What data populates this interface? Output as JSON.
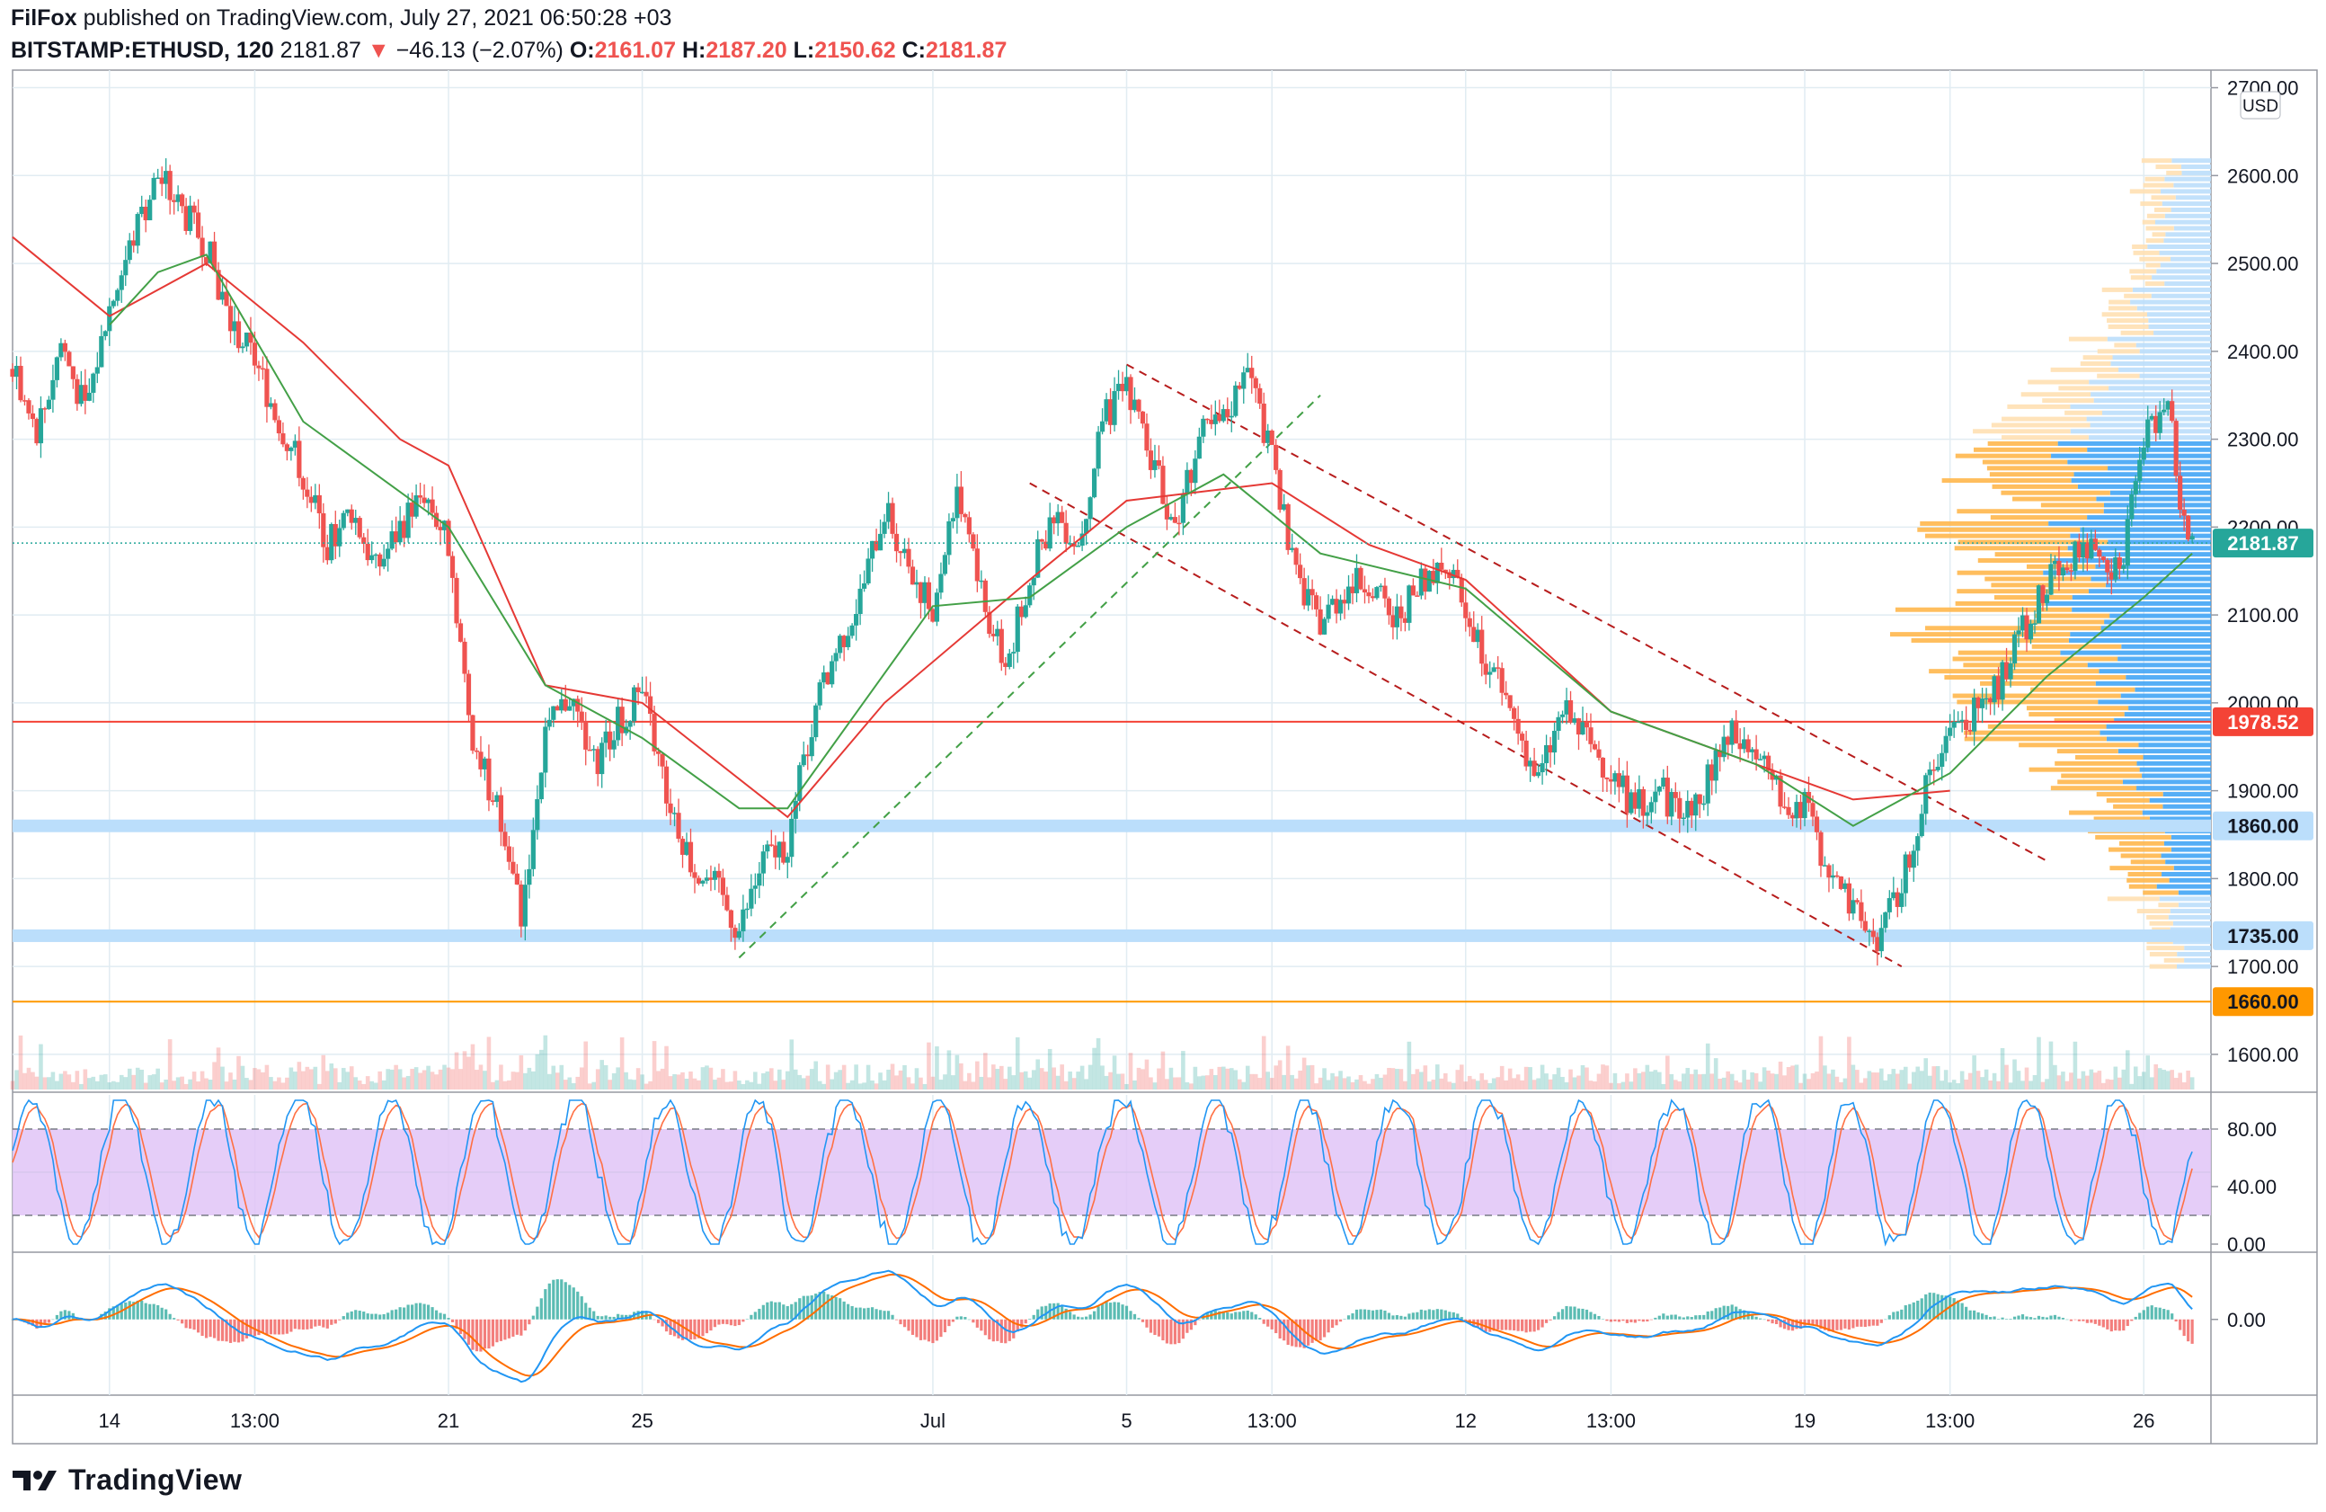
{
  "header": {
    "author": "FilFox",
    "published_text": "published on TradingView.com, July 27, 2021 06:50:28 +03",
    "symbol": "BITSTAMP:ETHUSD, 120",
    "last": "2181.87",
    "change_arrow": "▼",
    "change": "−46.13 (−2.07%)",
    "o_label": "O:",
    "o_value": "2161.07",
    "h_label": "H:",
    "h_value": "2187.20",
    "l_label": "L:",
    "l_value": "2150.62",
    "c_label": "C:",
    "c_value": "2181.87"
  },
  "branding": {
    "name": "TradingView"
  },
  "colors": {
    "up": "#26a69a",
    "down": "#ef5350",
    "grid": "#e1ecf2",
    "ema_red": "#e53935",
    "ema_green": "#43a047",
    "support_blue": "#bbdefb",
    "resistance_red": "#f44336",
    "support_orange": "#ff9800",
    "stoch_k": "#2196f3",
    "stoch_d": "#ff7043",
    "stoch_band": "#e1c4f7",
    "macd": "#2196f3",
    "signal": "#ff6d00"
  },
  "chart_data": [
    {
      "type": "candlestick",
      "title": "BITSTAMP:ETHUSD, 120",
      "currency": "USD",
      "ylim": [
        1560,
        2720
      ],
      "y_ticks": [
        "2700.00",
        "2600.00",
        "2500.00",
        "2400.00",
        "2300.00",
        "2200.00",
        "2100.00",
        "2000.00",
        "1900.00",
        "1800.00",
        "1700.00",
        "1600.00"
      ],
      "x_ticks": [
        "14",
        "13:00",
        "21",
        "25",
        "Jul",
        "5",
        "13:00",
        "12",
        "13:00",
        "19",
        "13:00",
        "26"
      ],
      "x_ticks_dates": [
        "2021-06-14",
        "2021-06-17",
        "2021-06-21",
        "2021-06-25",
        "2021-07-01",
        "2021-07-05",
        "2021-07-08",
        "2021-07-12",
        "2021-07-15",
        "2021-07-19",
        "2021-07-22",
        "2021-07-26"
      ],
      "x_range": [
        "2021-06-12",
        "2021-07-27"
      ],
      "close_path": [
        [
          "2021-06-12",
          2380
        ],
        [
          "2021-06-12.5",
          2300
        ],
        [
          "2021-06-13",
          2410
        ],
        [
          "2021-06-13.5",
          2330
        ],
        [
          "2021-06-14",
          2450
        ],
        [
          "2021-06-14.5",
          2530
        ],
        [
          "2021-06-15",
          2600
        ],
        [
          "2021-06-15.5",
          2560
        ],
        [
          "2021-06-16",
          2520
        ],
        [
          "2021-06-16.5",
          2430
        ],
        [
          "2021-06-17",
          2390
        ],
        [
          "2021-06-17.5",
          2320
        ],
        [
          "2021-06-18",
          2260
        ],
        [
          "2021-06-18.5",
          2180
        ],
        [
          "2021-06-19",
          2220
        ],
        [
          "2021-06-19.5",
          2150
        ],
        [
          "2021-06-20",
          2200
        ],
        [
          "2021-06-20.5",
          2240
        ],
        [
          "2021-06-21",
          2180
        ],
        [
          "2021-06-21.5",
          1960
        ],
        [
          "2021-06-22",
          1880
        ],
        [
          "2021-06-22.5",
          1760
        ],
        [
          "2021-06-23",
          1960
        ],
        [
          "2021-06-23.5",
          2010
        ],
        [
          "2021-06-24",
          1930
        ],
        [
          "2021-06-24.5",
          1980
        ],
        [
          "2021-06-25",
          2010
        ],
        [
          "2021-06-25.5",
          1900
        ],
        [
          "2021-06-26",
          1820
        ],
        [
          "2021-06-26.5",
          1790
        ],
        [
          "2021-06-27",
          1740
        ],
        [
          "2021-06-27.5",
          1820
        ],
        [
          "2021-06-28",
          1840
        ],
        [
          "2021-06-28.5",
          1980
        ],
        [
          "2021-06-29",
          2060
        ],
        [
          "2021-06-29.5",
          2120
        ],
        [
          "2021-06-30",
          2220
        ],
        [
          "2021-06-30.5",
          2160
        ],
        [
          "2021-07-01",
          2100
        ],
        [
          "2021-07-01.5",
          2250
        ],
        [
          "2021-07-02",
          2120
        ],
        [
          "2021-07-02.5",
          2040
        ],
        [
          "2021-07-03",
          2140
        ],
        [
          "2021-07-03.5",
          2220
        ],
        [
          "2021-07-04",
          2180
        ],
        [
          "2021-07-04.5",
          2320
        ],
        [
          "2021-07-05",
          2360
        ],
        [
          "2021-07-05.5",
          2280
        ],
        [
          "2021-07-06",
          2200
        ],
        [
          "2021-07-06.5",
          2300
        ],
        [
          "2021-07-07",
          2320
        ],
        [
          "2021-07-07.5",
          2380
        ],
        [
          "2021-07-08",
          2280
        ],
        [
          "2021-07-08.5",
          2140
        ],
        [
          "2021-07-09",
          2090
        ],
        [
          "2021-07-09.5",
          2130
        ],
        [
          "2021-07-10",
          2140
        ],
        [
          "2021-07-10.5",
          2090
        ],
        [
          "2021-07-11",
          2130
        ],
        [
          "2021-07-11.5",
          2160
        ],
        [
          "2021-07-12",
          2110
        ],
        [
          "2021-07-12.5",
          2040
        ],
        [
          "2021-07-13",
          1980
        ],
        [
          "2021-07-13.5",
          1910
        ],
        [
          "2021-07-14",
          1990
        ],
        [
          "2021-07-14.5",
          1960
        ],
        [
          "2021-07-15",
          1920
        ],
        [
          "2021-07-15.5",
          1880
        ],
        [
          "2021-07-16",
          1900
        ],
        [
          "2021-07-16.5",
          1870
        ],
        [
          "2021-07-17",
          1910
        ],
        [
          "2021-07-17.5",
          1960
        ],
        [
          "2021-07-18",
          1940
        ],
        [
          "2021-07-18.5",
          1890
        ],
        [
          "2021-07-19",
          1880
        ],
        [
          "2021-07-19.5",
          1810
        ],
        [
          "2021-07-20",
          1760
        ],
        [
          "2021-07-20.5",
          1730
        ],
        [
          "2021-07-21",
          1790
        ],
        [
          "2021-07-21.5",
          1900
        ],
        [
          "2021-07-22",
          1970
        ],
        [
          "2021-07-22.5",
          1990
        ],
        [
          "2021-07-23",
          2020
        ],
        [
          "2021-07-23.5",
          2080
        ],
        [
          "2021-07-24",
          2140
        ],
        [
          "2021-07-24.5",
          2170
        ],
        [
          "2021-07-25",
          2180
        ],
        [
          "2021-07-25.5",
          2150
        ],
        [
          "2021-07-26",
          2300
        ],
        [
          "2021-07-26.5",
          2350
        ],
        [
          "2021-07-26.8",
          2210
        ],
        [
          "2021-07-27",
          2182
        ]
      ],
      "ema_red_path": [
        [
          "2021-06-12",
          2530
        ],
        [
          "2021-06-14",
          2440
        ],
        [
          "2021-06-16",
          2500
        ],
        [
          "2021-06-18",
          2410
        ],
        [
          "2021-06-20",
          2300
        ],
        [
          "2021-06-21",
          2270
        ],
        [
          "2021-06-23",
          2020
        ],
        [
          "2021-06-25",
          2000
        ],
        [
          "2021-06-28",
          1870
        ],
        [
          "2021-06-30",
          2000
        ],
        [
          "2021-07-03",
          2140
        ],
        [
          "2021-07-05",
          2230
        ],
        [
          "2021-07-08",
          2250
        ],
        [
          "2021-07-10",
          2180
        ],
        [
          "2021-07-12",
          2140
        ],
        [
          "2021-07-15",
          1990
        ],
        [
          "2021-07-18",
          1930
        ],
        [
          "2021-07-20",
          1890
        ],
        [
          "2021-07-22",
          1900
        ]
      ],
      "ema_green_path": [
        [
          "2021-06-14",
          2430
        ],
        [
          "2021-06-15",
          2490
        ],
        [
          "2021-06-16",
          2510
        ],
        [
          "2021-06-18",
          2320
        ],
        [
          "2021-06-21",
          2200
        ],
        [
          "2021-06-23",
          2020
        ],
        [
          "2021-06-25",
          1960
        ],
        [
          "2021-06-27",
          1880
        ],
        [
          "2021-06-28",
          1880
        ],
        [
          "2021-07-01",
          2110
        ],
        [
          "2021-07-03",
          2120
        ],
        [
          "2021-07-05",
          2200
        ],
        [
          "2021-07-07",
          2260
        ],
        [
          "2021-07-09",
          2170
        ],
        [
          "2021-07-12",
          2130
        ],
        [
          "2021-07-15",
          1990
        ],
        [
          "2021-07-18",
          1930
        ],
        [
          "2021-07-20",
          1860
        ],
        [
          "2021-07-22",
          1920
        ],
        [
          "2021-07-24",
          2030
        ],
        [
          "2021-07-26",
          2120
        ],
        [
          "2021-07-27",
          2170
        ]
      ],
      "channel_lines": [
        {
          "from": [
            "2021-07-05",
            2385
          ],
          "to": [
            "2021-07-24",
            1820
          ],
          "style": "dashed",
          "color": "#b71c1c"
        },
        {
          "from": [
            "2021-07-03",
            2250
          ],
          "to": [
            "2021-07-21",
            1700
          ],
          "style": "dashed",
          "color": "#b71c1c"
        },
        {
          "from": [
            "2021-06-27",
            1710
          ],
          "to": [
            "2021-07-09",
            2350
          ],
          "style": "dashed",
          "color": "#43a047"
        }
      ],
      "horizontal_levels": [
        {
          "value": 1978.52,
          "label": "1978.52",
          "color": "#f44336",
          "kind": "resistance"
        },
        {
          "value": 1860.0,
          "label": "1860.00",
          "color": "#bbdefb",
          "kind": "support-zone"
        },
        {
          "value": 1735.0,
          "label": "1735.00",
          "color": "#bbdefb",
          "kind": "support-zone"
        },
        {
          "value": 1660.0,
          "label": "1660.00",
          "color": "#ff9800",
          "kind": "support"
        }
      ],
      "last_price": {
        "value": 2181.87,
        "label": "2181.87",
        "color": "#26a69a"
      },
      "volume_profile": "shown right side (blue/orange histogram by price)"
    },
    {
      "type": "line",
      "title": "",
      "series": [
        {
          "values": "stochastic %K"
        },
        {
          "values": "stochastic %D"
        }
      ],
      "ylim": [
        0,
        100
      ],
      "y_ticks": [
        "80.00",
        "40.00",
        "0.00"
      ],
      "band": [
        20,
        80
      ]
    },
    {
      "type": "line",
      "title": "",
      "series": [
        {
          "values": "MACD"
        },
        {
          "values": "signal"
        },
        {
          "values": "histogram"
        }
      ],
      "y_ticks": [
        "0.00"
      ]
    }
  ]
}
